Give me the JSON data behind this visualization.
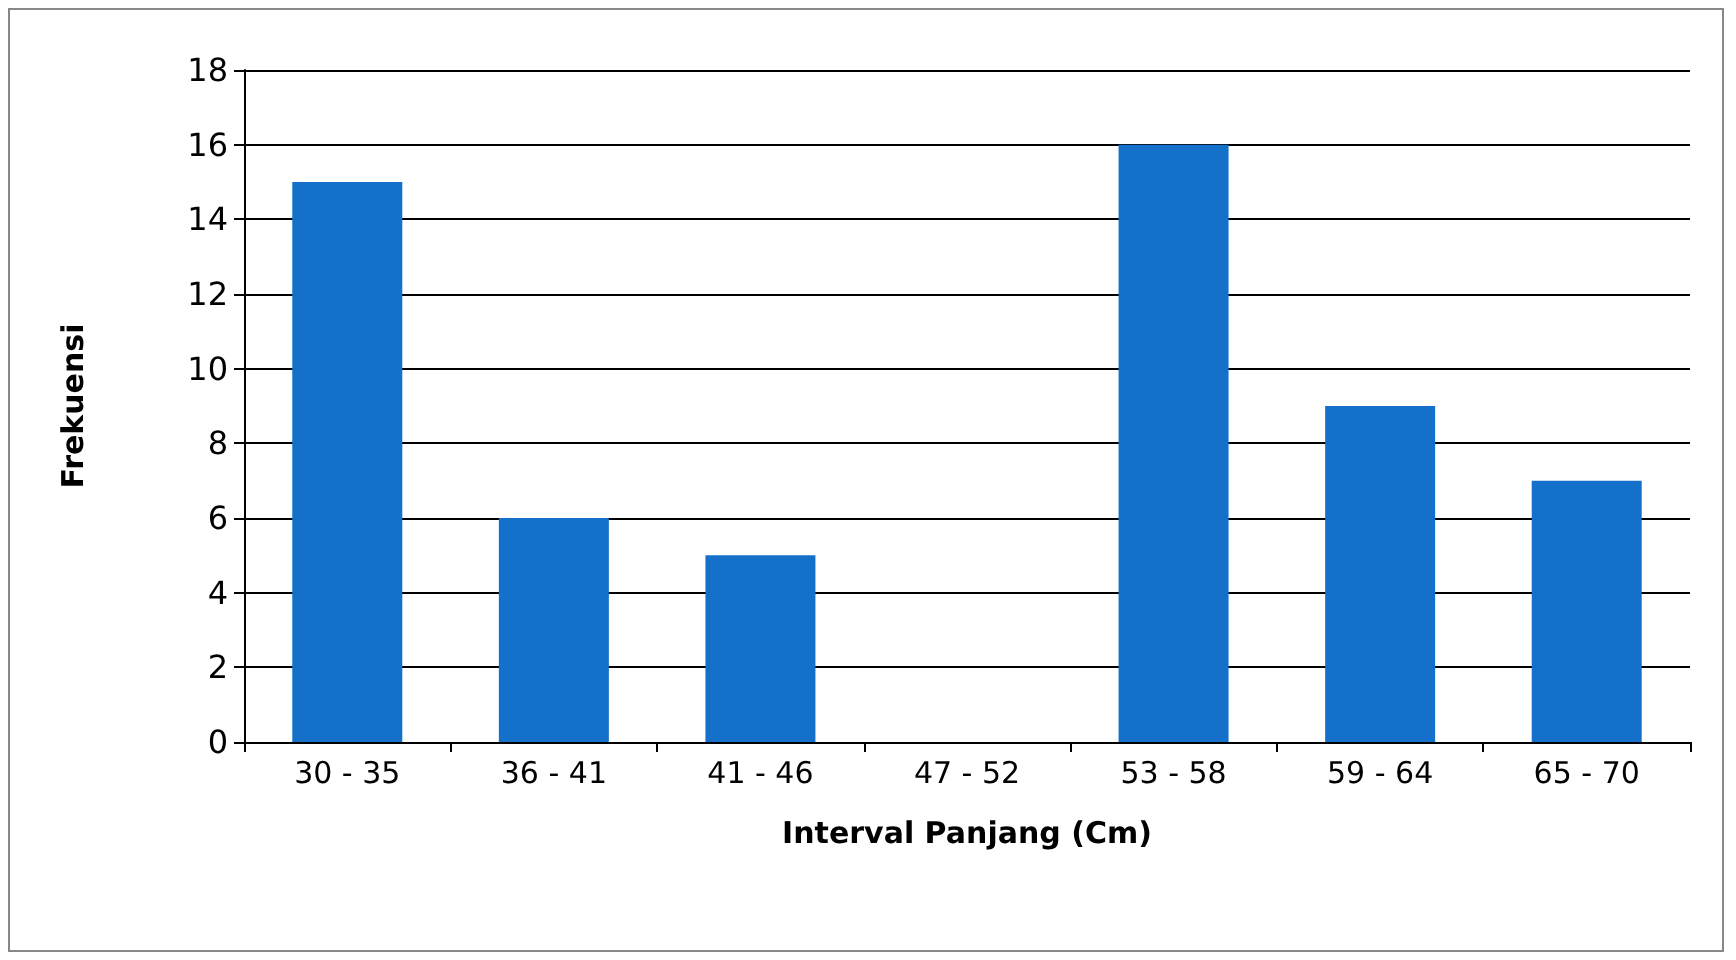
{
  "chart_data": {
    "type": "bar",
    "xlabel": "Interval Panjang (Cm)",
    "ylabel": "Frekuensi",
    "categories": [
      "30 - 35",
      "36 - 41",
      "41 - 46",
      "47 - 52",
      "53 - 58",
      "59 - 64",
      "65 - 70"
    ],
    "values": [
      15,
      6,
      5,
      0,
      16,
      9,
      7
    ],
    "color": "#1470c8",
    "ylim": [
      0,
      18
    ],
    "yticks": [
      0,
      2,
      4,
      6,
      8,
      10,
      12,
      14,
      16,
      18
    ],
    "grid": "y"
  }
}
